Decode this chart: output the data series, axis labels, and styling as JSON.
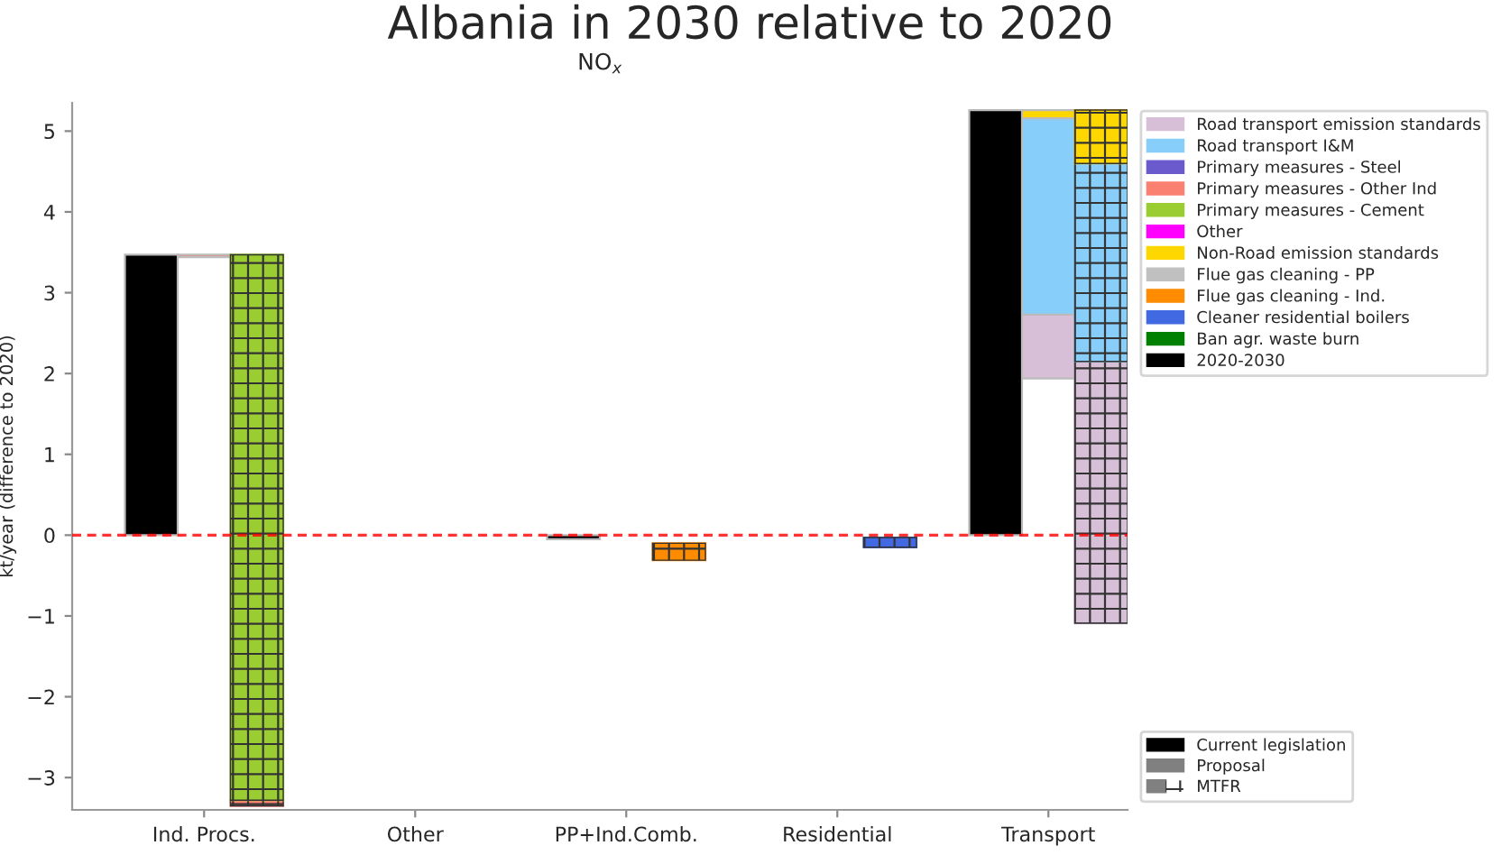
{
  "chart_data": {
    "type": "bar",
    "title": "Albania in 2030 relative to 2020",
    "subtitle": "NO$_{x}$",
    "ylabel": "kt/year (difference to 2020)",
    "categories": [
      null,
      "Ind. Procs.",
      null,
      null,
      null,
      "Other",
      null,
      null,
      null,
      "PP+Ind.Comb.",
      null,
      null,
      null,
      "Residential",
      null,
      null,
      null,
      "Transport",
      null,
      null
    ],
    "series": [
      {
        "name": "Road transport emission standards",
        "color": "#d8bfd8",
        "values": [
          null,
          null,
          null,
          null,
          null,
          null,
          null,
          null,
          null,
          null,
          null,
          null,
          null,
          null,
          null,
          null,
          null,
          -0.79,
          -3.24,
          null
        ],
        "base": [
          null,
          null,
          null,
          null,
          null,
          null,
          null,
          null,
          null,
          null,
          null,
          null,
          null,
          null,
          null,
          null,
          null,
          2.73,
          2.15,
          null
        ]
      },
      {
        "name": "Road transport I&M",
        "color": "#87cefa",
        "values": [
          null,
          null,
          null,
          null,
          null,
          null,
          null,
          null,
          null,
          null,
          null,
          null,
          null,
          null,
          null,
          null,
          null,
          -2.43,
          -2.45,
          null
        ],
        "base": [
          null,
          null,
          null,
          null,
          null,
          null,
          null,
          null,
          null,
          null,
          null,
          null,
          null,
          null,
          null,
          null,
          null,
          5.16,
          4.6,
          null
        ]
      },
      {
        "name": "Primary measures - Steel",
        "color": "#6a5acd",
        "values": [
          null,
          null,
          null,
          null,
          null,
          null,
          null,
          null,
          null,
          null,
          null,
          null,
          null,
          null,
          null,
          null,
          null,
          null,
          null,
          null
        ],
        "base": [
          null,
          null,
          null,
          null,
          null,
          null,
          null,
          null,
          null,
          null,
          null,
          null,
          null,
          null,
          null,
          null,
          null,
          null,
          null,
          null
        ]
      },
      {
        "name": "Primary measures - Other Ind",
        "color": "#fa8072",
        "values": [
          null,
          -0.03,
          -0.07,
          null,
          null,
          null,
          null,
          null,
          null,
          null,
          null,
          null,
          null,
          null,
          null,
          null,
          null,
          null,
          null,
          null
        ],
        "base": [
          null,
          3.47,
          -3.28,
          null,
          null,
          null,
          null,
          null,
          null,
          null,
          null,
          null,
          null,
          null,
          null,
          null,
          null,
          null,
          null,
          null
        ]
      },
      {
        "name": "Primary measures - Cement",
        "color": "#9acd32",
        "values": [
          null,
          null,
          -6.75,
          null,
          null,
          null,
          null,
          null,
          null,
          null,
          null,
          null,
          null,
          null,
          null,
          null,
          null,
          null,
          null,
          null
        ],
        "base": [
          null,
          null,
          3.47,
          null,
          null,
          null,
          null,
          null,
          null,
          null,
          null,
          null,
          null,
          null,
          null,
          null,
          null,
          null,
          null,
          null
        ]
      },
      {
        "name": "Other",
        "color": "#ff00ff",
        "values": [
          null,
          null,
          null,
          null,
          null,
          null,
          null,
          null,
          null,
          null,
          null,
          null,
          null,
          null,
          null,
          null,
          null,
          null,
          null,
          null
        ],
        "base": [
          null,
          null,
          null,
          null,
          null,
          null,
          null,
          null,
          null,
          null,
          null,
          null,
          null,
          null,
          null,
          null,
          null,
          null,
          null,
          null
        ]
      },
      {
        "name": "Non-Road emission standards",
        "color": "#ffd700",
        "values": [
          null,
          null,
          null,
          null,
          null,
          null,
          null,
          null,
          null,
          null,
          null,
          null,
          null,
          null,
          null,
          null,
          null,
          -0.1,
          -0.66,
          null
        ],
        "base": [
          null,
          null,
          null,
          null,
          null,
          null,
          null,
          null,
          null,
          null,
          null,
          null,
          null,
          null,
          null,
          null,
          null,
          5.26,
          5.26,
          null
        ]
      },
      {
        "name": "Flue gas cleaning - PP",
        "color": "#c0c0c0",
        "values": [
          null,
          null,
          null,
          null,
          null,
          null,
          null,
          null,
          null,
          null,
          null,
          null,
          null,
          null,
          null,
          null,
          null,
          null,
          null,
          null
        ],
        "base": [
          null,
          null,
          null,
          null,
          null,
          null,
          null,
          null,
          null,
          null,
          null,
          null,
          null,
          null,
          null,
          null,
          null,
          null,
          null,
          null
        ]
      },
      {
        "name": "Flue gas cleaning - Ind.",
        "color": "#ff8c00",
        "values": [
          null,
          null,
          null,
          null,
          null,
          null,
          null,
          null,
          null,
          null,
          -0.21,
          null,
          null,
          null,
          null,
          null,
          null,
          null,
          null,
          null
        ],
        "base": [
          null,
          null,
          null,
          null,
          null,
          null,
          null,
          null,
          null,
          null,
          -0.1,
          null,
          null,
          null,
          null,
          null,
          null,
          null,
          null,
          null
        ]
      },
      {
        "name": "Cleaner residential boilers",
        "color": "#4169e1",
        "values": [
          null,
          null,
          null,
          null,
          null,
          null,
          null,
          null,
          null,
          null,
          null,
          null,
          null,
          null,
          -0.12,
          null,
          null,
          null,
          null,
          null
        ],
        "base": [
          null,
          null,
          null,
          null,
          null,
          null,
          null,
          null,
          null,
          null,
          null,
          null,
          null,
          null,
          -0.03,
          null,
          null,
          null,
          null,
          null
        ]
      },
      {
        "name": "Ban agr. waste burn",
        "color": "#008000",
        "values": [
          null,
          null,
          null,
          null,
          null,
          null,
          null,
          null,
          null,
          null,
          null,
          null,
          null,
          null,
          null,
          null,
          null,
          null,
          null,
          null
        ],
        "base": [
          null,
          null,
          null,
          null,
          null,
          null,
          null,
          null,
          null,
          null,
          null,
          null,
          null,
          null,
          null,
          null,
          null,
          null,
          null,
          null
        ]
      },
      {
        "name": "2020-2030",
        "color": "#000000",
        "values": [
          3.47,
          null,
          null,
          null,
          null,
          null,
          null,
          null,
          -0.05,
          null,
          null,
          null,
          null,
          null,
          null,
          null,
          5.26,
          null,
          null,
          null
        ],
        "base": [
          0,
          null,
          null,
          null,
          null,
          null,
          null,
          null,
          0,
          null,
          null,
          null,
          null,
          null,
          null,
          null,
          0,
          null,
          null,
          null
        ]
      },
      {
        "name": "Current legislation",
        "color": "#000000",
        "values": [
          null,
          null,
          null,
          null,
          null,
          null,
          null,
          null,
          null,
          null,
          null,
          null,
          null,
          null,
          null,
          null,
          null,
          null,
          null,
          null
        ]
      },
      {
        "name": "Proposal",
        "color": "#808080",
        "values": [
          null,
          null,
          null,
          null,
          null,
          null,
          null,
          null,
          null,
          null,
          null,
          null,
          null,
          null,
          null,
          null,
          null,
          null,
          null,
          null
        ]
      },
      {
        "name": "MTFR",
        "color": "#808080",
        "values": [
          null,
          null,
          null,
          null,
          null,
          null,
          null,
          null,
          null,
          null,
          null,
          null,
          null,
          null,
          null,
          null,
          null,
          null,
          null,
          null
        ]
      }
    ],
    "ylim": [
      -3.4,
      5.35
    ],
    "yticks": [
      {
        "value": -3,
        "label": "−3"
      },
      {
        "value": -2,
        "label": "−2"
      },
      {
        "value": -1,
        "label": "−1"
      },
      0,
      1,
      2,
      3,
      4,
      5
    ],
    "ref_lines": [
      {
        "axis": "y",
        "value": 0,
        "color": "#ff0000",
        "line_style": "dashed"
      }
    ],
    "grid": false,
    "legend": "right"
  }
}
